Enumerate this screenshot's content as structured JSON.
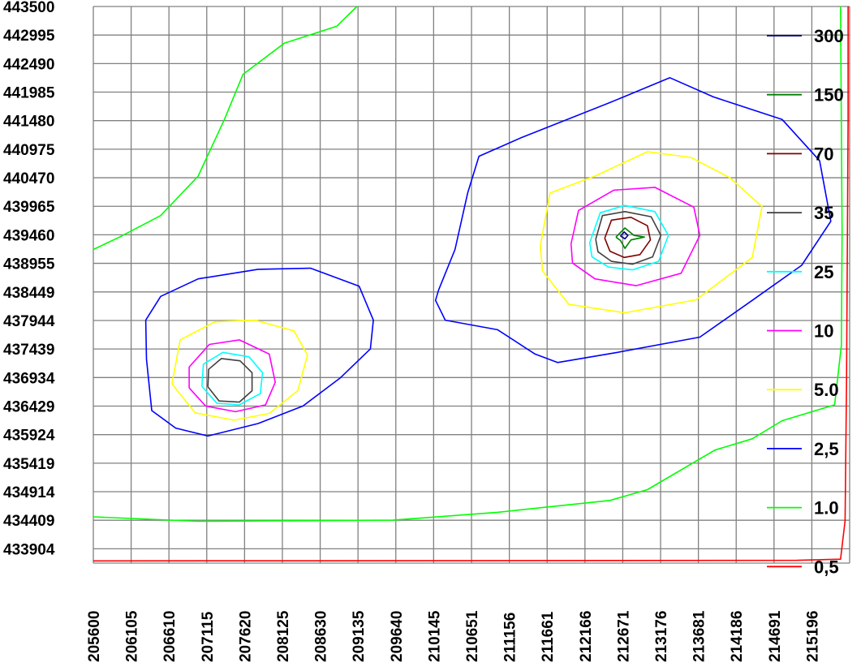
{
  "chart_data": {
    "type": "contour",
    "title": "",
    "xlabel": "",
    "ylabel": "",
    "grid": true,
    "legend_position": "right-inside",
    "x_ticks": [
      "205600",
      "206105",
      "206610",
      "207115",
      "207620",
      "208125",
      "208630",
      "209135",
      "209640",
      "210145",
      "210651",
      "211156",
      "211661",
      "212166",
      "212671",
      "213176",
      "213681",
      "214186",
      "214691",
      "215196"
    ],
    "y_ticks": [
      "443500",
      "442995",
      "442490",
      "441985",
      "441480",
      "440975",
      "440470",
      "439965",
      "439460",
      "438955",
      "438449",
      "437944",
      "437439",
      "436934",
      "436429",
      "435924",
      "435419",
      "434914",
      "434409",
      "433904"
    ],
    "xlim": [
      205600,
      215701
    ],
    "ylim": [
      433651,
      443500
    ],
    "legend": [
      {
        "label": "300",
        "color": "#000080"
      },
      {
        "label": "150",
        "color": "#008000"
      },
      {
        "label": "70",
        "color": "#800000"
      },
      {
        "label": "35",
        "color": "#404040"
      },
      {
        "label": "25",
        "color": "#00ffff"
      },
      {
        "label": "10",
        "color": "#ff00ff"
      },
      {
        "label": "5.0",
        "color": "#ffff00"
      },
      {
        "label": "2,5",
        "color": "#0000ff"
      },
      {
        "label": "1.0",
        "color": "#00ff00"
      },
      {
        "label": "0,5",
        "color": "#ff0000"
      }
    ],
    "series": [
      {
        "level": "0,5",
        "color": "#ff0000",
        "path": [
          [
            205600,
            433690
          ],
          [
            210000,
            433693
          ],
          [
            215000,
            433700
          ],
          [
            215580,
            433720
          ],
          [
            215640,
            434400
          ],
          [
            215660,
            436900
          ],
          [
            215680,
            441500
          ],
          [
            215680,
            443500
          ]
        ]
      },
      {
        "level": "1.0",
        "color": "#00ff00",
        "path": [
          [
            205600,
            434470
          ],
          [
            207000,
            434390
          ],
          [
            209600,
            434410
          ],
          [
            211000,
            434550
          ],
          [
            212500,
            434760
          ],
          [
            213000,
            434950
          ],
          [
            213900,
            435650
          ],
          [
            214400,
            435850
          ],
          [
            214800,
            436170
          ],
          [
            215500,
            436450
          ],
          [
            215590,
            437500
          ],
          [
            215600,
            439500
          ],
          [
            215580,
            443500
          ]
        ]
      },
      {
        "level": "1.0",
        "color": "#00ff00",
        "path": [
          [
            205600,
            439200
          ],
          [
            205950,
            439420
          ],
          [
            206500,
            439800
          ],
          [
            207000,
            440500
          ],
          [
            207350,
            441500
          ],
          [
            207600,
            442300
          ],
          [
            208150,
            442850
          ],
          [
            208850,
            443150
          ],
          [
            209120,
            443500
          ]
        ]
      },
      {
        "level": "2,5",
        "color": "#0000ff",
        "path": [
          [
            206310,
            437260
          ],
          [
            206380,
            436350
          ],
          [
            206700,
            436040
          ],
          [
            207130,
            435900
          ],
          [
            207800,
            436120
          ],
          [
            208400,
            436430
          ],
          [
            208900,
            436930
          ],
          [
            209300,
            437440
          ],
          [
            209340,
            437950
          ],
          [
            209150,
            438550
          ],
          [
            208500,
            438870
          ],
          [
            207800,
            438850
          ],
          [
            207000,
            438680
          ],
          [
            206500,
            438370
          ],
          [
            206300,
            437950
          ],
          [
            206310,
            437260
          ]
        ]
      },
      {
        "level": "5.0",
        "color": "#ffff00",
        "path": [
          [
            206650,
            436820
          ],
          [
            206960,
            436310
          ],
          [
            207480,
            436180
          ],
          [
            207950,
            436300
          ],
          [
            208330,
            436700
          ],
          [
            208460,
            437330
          ],
          [
            208280,
            437760
          ],
          [
            207760,
            437950
          ],
          [
            207220,
            437920
          ],
          [
            206760,
            437600
          ],
          [
            206650,
            436820
          ]
        ]
      },
      {
        "level": "10",
        "color": "#ff00ff",
        "path": [
          [
            206880,
            436750
          ],
          [
            207100,
            436430
          ],
          [
            207500,
            436330
          ],
          [
            207900,
            436450
          ],
          [
            208030,
            436850
          ],
          [
            207950,
            437350
          ],
          [
            207550,
            437600
          ],
          [
            207150,
            437520
          ],
          [
            206880,
            437120
          ],
          [
            206880,
            436750
          ]
        ]
      },
      {
        "level": "25",
        "color": "#00ffff",
        "path": [
          [
            207050,
            436780
          ],
          [
            207250,
            436480
          ],
          [
            207550,
            436450
          ],
          [
            207830,
            436650
          ],
          [
            207860,
            437020
          ],
          [
            207680,
            437300
          ],
          [
            207330,
            437380
          ],
          [
            207070,
            437170
          ],
          [
            207050,
            436780
          ]
        ]
      },
      {
        "level": "35",
        "color": "#404040",
        "path": [
          [
            207130,
            436770
          ],
          [
            207280,
            436520
          ],
          [
            207550,
            436500
          ],
          [
            207720,
            436700
          ],
          [
            207720,
            437020
          ],
          [
            207560,
            437230
          ],
          [
            207310,
            437270
          ],
          [
            207140,
            437080
          ],
          [
            207130,
            436770
          ]
        ]
      },
      {
        "level": "2,5",
        "color": "#0000ff",
        "path": [
          [
            210210,
            438480
          ],
          [
            210430,
            439200
          ],
          [
            210600,
            440200
          ],
          [
            210750,
            440850
          ],
          [
            211300,
            441170
          ],
          [
            212500,
            441800
          ],
          [
            213300,
            442240
          ],
          [
            213880,
            441900
          ],
          [
            214800,
            441500
          ],
          [
            215300,
            440770
          ],
          [
            215450,
            439700
          ],
          [
            215060,
            438920
          ],
          [
            214400,
            438300
          ],
          [
            213700,
            437650
          ],
          [
            212600,
            437380
          ],
          [
            211800,
            437200
          ],
          [
            211500,
            437350
          ],
          [
            211000,
            437780
          ],
          [
            210300,
            437950
          ],
          [
            210170,
            438300
          ],
          [
            210210,
            438480
          ]
        ]
      },
      {
        "level": "5.0",
        "color": "#ffff00",
        "path": [
          [
            211570,
            439260
          ],
          [
            211700,
            440200
          ],
          [
            212300,
            440500
          ],
          [
            213000,
            440930
          ],
          [
            213580,
            440830
          ],
          [
            214100,
            440470
          ],
          [
            214530,
            439960
          ],
          [
            214400,
            439060
          ],
          [
            213650,
            438310
          ],
          [
            212700,
            438080
          ],
          [
            211950,
            438230
          ],
          [
            211600,
            438820
          ],
          [
            211570,
            439260
          ]
        ]
      },
      {
        "level": "10",
        "color": "#ff00ff",
        "path": [
          [
            211980,
            439300
          ],
          [
            212080,
            439890
          ],
          [
            212550,
            440250
          ],
          [
            213100,
            440300
          ],
          [
            213620,
            439950
          ],
          [
            213700,
            439450
          ],
          [
            213450,
            438780
          ],
          [
            212850,
            438560
          ],
          [
            212300,
            438680
          ],
          [
            212000,
            438960
          ],
          [
            211980,
            439300
          ]
        ]
      },
      {
        "level": "25",
        "color": "#00ffff",
        "path": [
          [
            212230,
            439320
          ],
          [
            212370,
            439850
          ],
          [
            212700,
            439980
          ],
          [
            213100,
            439870
          ],
          [
            213280,
            439450
          ],
          [
            213150,
            438990
          ],
          [
            212800,
            438840
          ],
          [
            212480,
            438890
          ],
          [
            212260,
            439070
          ],
          [
            212230,
            439320
          ]
        ]
      },
      {
        "level": "35",
        "color": "#404040",
        "path": [
          [
            212310,
            439380
          ],
          [
            212400,
            439800
          ],
          [
            212700,
            439870
          ],
          [
            213050,
            439780
          ],
          [
            213180,
            439450
          ],
          [
            213070,
            439070
          ],
          [
            212800,
            438940
          ],
          [
            212520,
            438990
          ],
          [
            212340,
            439160
          ],
          [
            212310,
            439380
          ]
        ]
      },
      {
        "level": "70",
        "color": "#800000",
        "path": [
          [
            212430,
            439400
          ],
          [
            212520,
            439720
          ],
          [
            212780,
            439770
          ],
          [
            213000,
            439620
          ],
          [
            213040,
            439370
          ],
          [
            212900,
            439110
          ],
          [
            212690,
            439060
          ],
          [
            212500,
            439170
          ],
          [
            212430,
            439400
          ]
        ]
      },
      {
        "level": "150",
        "color": "#008000",
        "path": [
          [
            212580,
            439420
          ],
          [
            212700,
            439580
          ],
          [
            212820,
            439450
          ],
          [
            212960,
            439420
          ],
          [
            212780,
            439370
          ],
          [
            212700,
            439220
          ],
          [
            212640,
            439360
          ],
          [
            212580,
            439420
          ]
        ]
      },
      {
        "level": "300",
        "color": "#000080",
        "path": [
          [
            212640,
            439440
          ],
          [
            212690,
            439510
          ],
          [
            212740,
            439450
          ],
          [
            212700,
            439390
          ],
          [
            212640,
            439440
          ]
        ]
      }
    ]
  }
}
